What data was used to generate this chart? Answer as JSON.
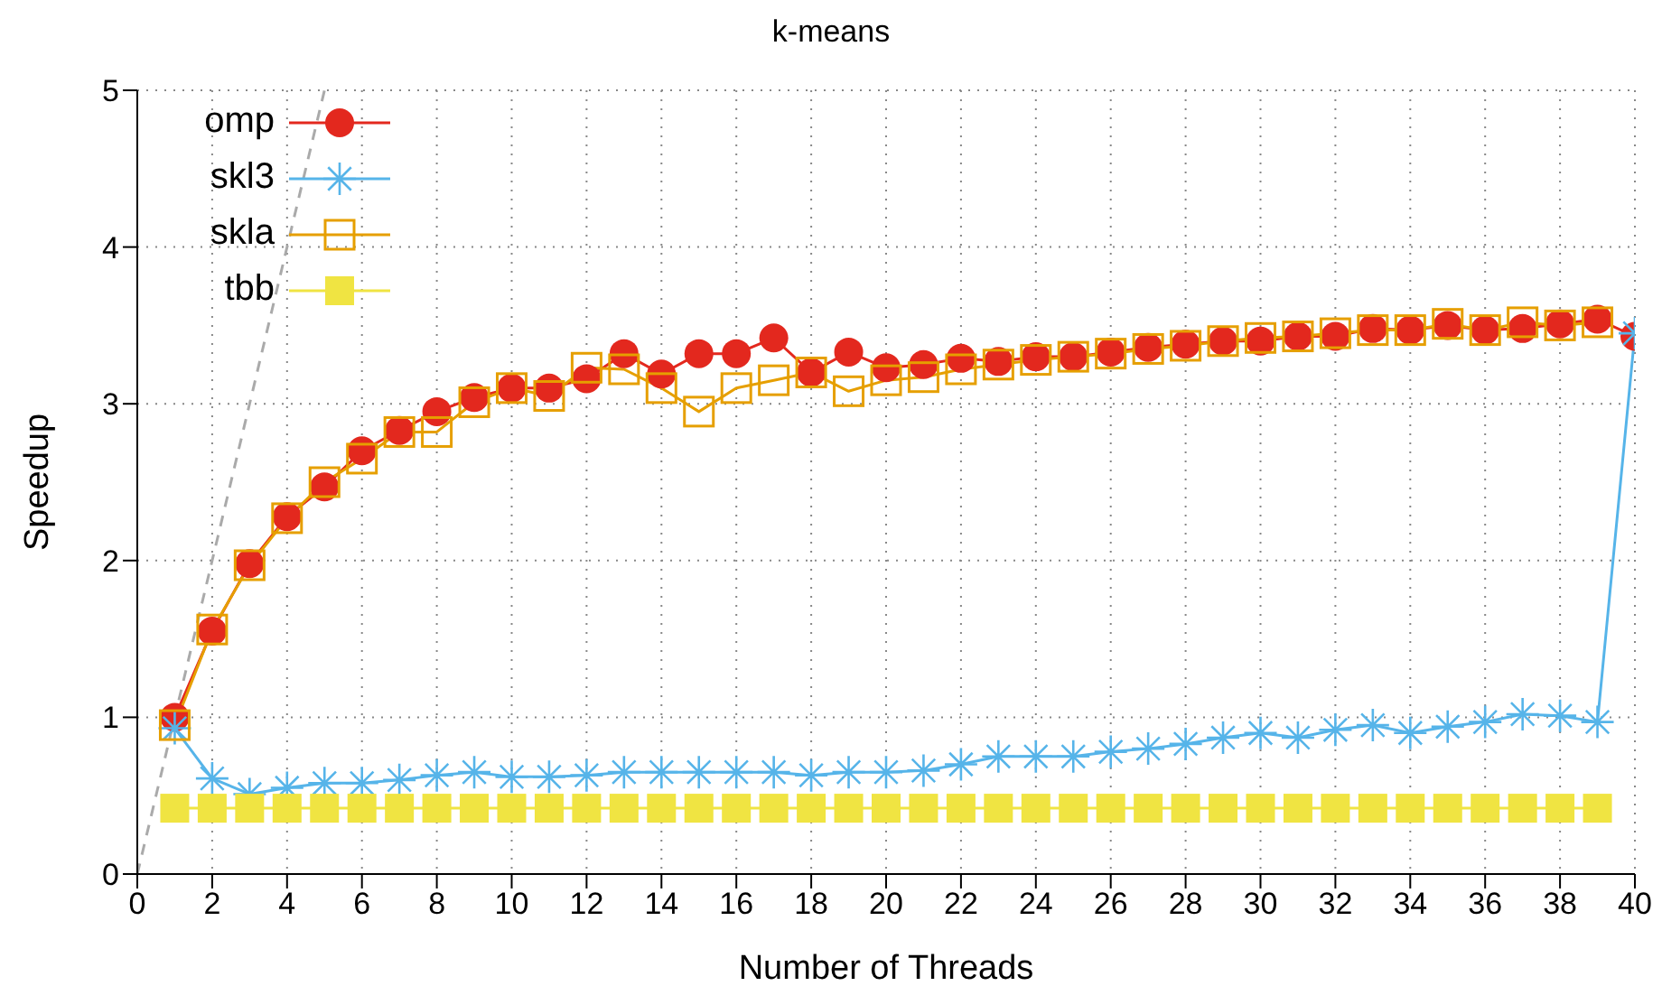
{
  "chart_data": {
    "type": "line",
    "title": "k-means",
    "xlabel": "Number of Threads",
    "ylabel": "Speedup",
    "xlim": [
      0,
      40
    ],
    "xticks": [
      0,
      2,
      4,
      6,
      8,
      10,
      12,
      14,
      16,
      18,
      20,
      22,
      24,
      26,
      28,
      30,
      32,
      34,
      36,
      38,
      40
    ],
    "ylim": [
      0,
      5
    ],
    "yticks": [
      0,
      1,
      2,
      3,
      4,
      5
    ],
    "grid": true,
    "legend": "top left",
    "series": [
      {
        "name": "omp",
        "color": "#e3281e",
        "marker": "circle",
        "x": [
          1,
          2,
          3,
          4,
          5,
          6,
          7,
          8,
          9,
          10,
          11,
          12,
          13,
          14,
          15,
          16,
          17,
          18,
          19,
          20,
          21,
          22,
          23,
          24,
          25,
          26,
          27,
          28,
          29,
          30,
          31,
          32,
          33,
          34,
          35,
          36,
          37,
          38,
          39,
          40
        ],
        "values": [
          1.0,
          1.55,
          1.98,
          2.28,
          2.47,
          2.7,
          2.83,
          2.95,
          3.04,
          3.1,
          3.1,
          3.16,
          3.32,
          3.19,
          3.32,
          3.32,
          3.42,
          3.2,
          3.33,
          3.23,
          3.25,
          3.29,
          3.27,
          3.3,
          3.3,
          3.33,
          3.36,
          3.38,
          3.4,
          3.4,
          3.43,
          3.43,
          3.48,
          3.47,
          3.5,
          3.47,
          3.48,
          3.51,
          3.54,
          3.43
        ]
      },
      {
        "name": "skl3",
        "color": "#56b4e9",
        "marker": "cross",
        "x": [
          1,
          2,
          3,
          4,
          5,
          6,
          7,
          8,
          9,
          10,
          11,
          12,
          13,
          14,
          15,
          16,
          17,
          18,
          19,
          20,
          21,
          22,
          23,
          24,
          25,
          26,
          27,
          28,
          29,
          30,
          31,
          32,
          33,
          34,
          35,
          36,
          37,
          38,
          39,
          40
        ],
        "values": [
          0.93,
          0.61,
          0.51,
          0.55,
          0.58,
          0.58,
          0.6,
          0.63,
          0.65,
          0.62,
          0.62,
          0.63,
          0.65,
          0.65,
          0.65,
          0.65,
          0.65,
          0.63,
          0.65,
          0.65,
          0.66,
          0.7,
          0.75,
          0.75,
          0.75,
          0.78,
          0.8,
          0.83,
          0.87,
          0.9,
          0.87,
          0.92,
          0.95,
          0.9,
          0.94,
          0.97,
          1.02,
          1.01,
          0.97,
          3.45
        ]
      },
      {
        "name": "skla",
        "color": "#e69f00",
        "marker": "square",
        "x": [
          1,
          2,
          3,
          4,
          5,
          6,
          7,
          8,
          9,
          10,
          11,
          12,
          13,
          14,
          15,
          16,
          17,
          18,
          19,
          20,
          21,
          22,
          23,
          24,
          25,
          26,
          27,
          28,
          29,
          30,
          31,
          32,
          33,
          34,
          35,
          36,
          37,
          38,
          39
        ],
        "values": [
          0.95,
          1.56,
          1.97,
          2.27,
          2.5,
          2.65,
          2.82,
          2.82,
          3.01,
          3.1,
          3.05,
          3.23,
          3.22,
          3.1,
          2.95,
          3.1,
          3.15,
          3.2,
          3.08,
          3.15,
          3.17,
          3.22,
          3.25,
          3.28,
          3.3,
          3.32,
          3.35,
          3.37,
          3.4,
          3.42,
          3.43,
          3.45,
          3.47,
          3.47,
          3.51,
          3.47,
          3.52,
          3.5,
          3.52
        ]
      },
      {
        "name": "tbb",
        "color": "#f0e442",
        "marker": "square",
        "x": [
          1,
          2,
          3,
          4,
          5,
          6,
          7,
          8,
          9,
          10,
          11,
          12,
          13,
          14,
          15,
          16,
          17,
          18,
          19,
          20,
          21,
          22,
          23,
          24,
          25,
          26,
          27,
          28,
          29,
          30,
          31,
          32,
          33,
          34,
          35,
          36,
          37,
          38,
          39
        ],
        "values": [
          0.42,
          0.42,
          0.42,
          0.42,
          0.42,
          0.42,
          0.42,
          0.42,
          0.42,
          0.42,
          0.42,
          0.42,
          0.42,
          0.42,
          0.42,
          0.42,
          0.42,
          0.42,
          0.42,
          0.42,
          0.42,
          0.42,
          0.42,
          0.42,
          0.42,
          0.42,
          0.42,
          0.42,
          0.42,
          0.42,
          0.42,
          0.42,
          0.42,
          0.42,
          0.42,
          0.42,
          0.42,
          0.42,
          0.42
        ]
      },
      {
        "color": "#aaaaaa",
        "marker": "none",
        "line_style": "dashed",
        "x": [
          0,
          5
        ],
        "values": [
          0,
          5
        ]
      }
    ]
  }
}
